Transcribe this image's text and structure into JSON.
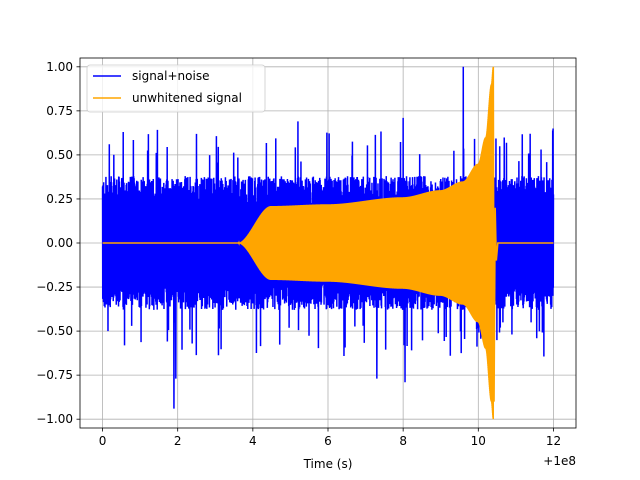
{
  "chart_data": {
    "type": "line",
    "title": "",
    "xlabel": "Time (s)",
    "ylabel": "",
    "x_offset_label": "+1e8",
    "xlim": [
      -0.6,
      12.6
    ],
    "ylim": [
      -1.05,
      1.05
    ],
    "xticks": [
      0,
      2,
      4,
      6,
      8,
      10,
      12
    ],
    "xtick_labels": [
      "0",
      "2",
      "4",
      "6",
      "8",
      "10",
      "12"
    ],
    "yticks": [
      -1.0,
      -0.75,
      -0.5,
      -0.25,
      0.0,
      0.25,
      0.5,
      0.75,
      1.0
    ],
    "ytick_labels": [
      "−1.00",
      "−0.75",
      "−0.50",
      "−0.25",
      "0.00",
      "0.25",
      "0.50",
      "0.75",
      "1.00"
    ],
    "grid": true,
    "legend_position": "top-left",
    "series": [
      {
        "name": "signal+noise",
        "color": "#0000ff",
        "kind": "noisy-band",
        "x_range": [
          0,
          12
        ],
        "typical_amplitude": 0.38,
        "peaks": [
          {
            "x": 1.9,
            "y": -0.94
          },
          {
            "x": 9.6,
            "y": 1.0
          },
          {
            "x": 8.05,
            "y": -0.79
          },
          {
            "x": 7.3,
            "y": -0.77
          },
          {
            "x": 8.0,
            "y": 0.71
          },
          {
            "x": 5.2,
            "y": 0.69
          },
          {
            "x": 1.95,
            "y": -0.77
          },
          {
            "x": 10.3,
            "y": 0.72
          },
          {
            "x": 0.55,
            "y": 0.63
          }
        ]
      },
      {
        "name": "unwhitened signal",
        "color": "#ffa500",
        "kind": "chirp-envelope",
        "zero_until": 3.6,
        "rise_end": 4.5,
        "plateau_amplitude": 0.21,
        "merger_time": 10.4,
        "merger_peak": 1.0,
        "merger_trough": -0.9,
        "envelope": [
          {
            "x": 3.6,
            "y": 0.0
          },
          {
            "x": 4.5,
            "y": 0.21
          },
          {
            "x": 6.0,
            "y": 0.22
          },
          {
            "x": 8.0,
            "y": 0.26
          },
          {
            "x": 9.0,
            "y": 0.3
          },
          {
            "x": 9.6,
            "y": 0.35
          },
          {
            "x": 10.0,
            "y": 0.45
          },
          {
            "x": 10.2,
            "y": 0.6
          },
          {
            "x": 10.35,
            "y": 0.9
          },
          {
            "x": 10.4,
            "y": 1.0
          }
        ]
      }
    ]
  }
}
